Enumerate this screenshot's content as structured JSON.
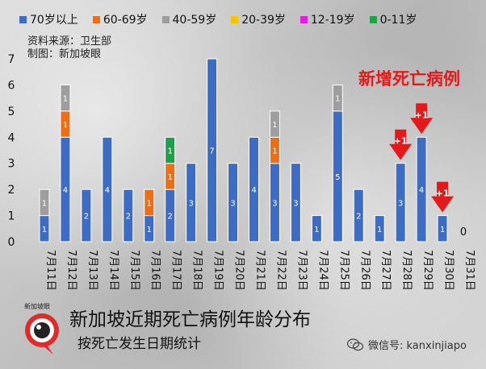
{
  "legend": [
    {
      "name": "70岁以上",
      "color": "#3c6cc4"
    },
    {
      "name": "60-69岁",
      "color": "#ee6e16"
    },
    {
      "name": "40-59岁",
      "color": "#9e9e9e"
    },
    {
      "name": "20-39岁",
      "color": "#f5c400"
    },
    {
      "name": "12-19岁",
      "color": "#e020e0"
    },
    {
      "name": "0-11岁",
      "color": "#21a04a"
    }
  ],
  "source_lines": [
    "资料来源：卫生部",
    "制图：新加坡眼"
  ],
  "corner_title": "新增死亡病例",
  "footer": {
    "title": "新加坡近期死亡病例年龄分布",
    "subtitle": "按死亡发生日期统计",
    "brand_logo_text": "新加坡眼",
    "wechat_text": "微信号: kanxinjiapo",
    "wechat_icon": "wechat-icon"
  },
  "chart_data": {
    "type": "bar",
    "stacked": true,
    "categories": [
      "7月11日",
      "7月12日",
      "7月13日",
      "7月14日",
      "7月15日",
      "7月16日",
      "7月17日",
      "7月18日",
      "7月19日",
      "7月20日",
      "7月21日",
      "7月22日",
      "7月23日",
      "7月24日",
      "7月25日",
      "7月26日",
      "7月27日",
      "7月28日",
      "7月29日",
      "7月30日",
      "7月31日"
    ],
    "series": [
      {
        "name": "70岁以上",
        "color": "#3c6cc4",
        "values": [
          1,
          4,
          2,
          4,
          2,
          1,
          2,
          3,
          7,
          3,
          4,
          3,
          3,
          1,
          5,
          2,
          1,
          3,
          4,
          1,
          0
        ]
      },
      {
        "name": "60-69岁",
        "color": "#ee6e16",
        "values": [
          0,
          1,
          0,
          0,
          0,
          1,
          1,
          0,
          0,
          0,
          0,
          1,
          0,
          0,
          0,
          0,
          0,
          0,
          0,
          0,
          0
        ]
      },
      {
        "name": "40-59岁",
        "color": "#9e9e9e",
        "values": [
          1,
          1,
          0,
          0,
          0,
          0,
          0,
          0,
          0,
          0,
          0,
          1,
          0,
          0,
          1,
          0,
          0,
          0,
          0,
          0,
          0
        ]
      },
      {
        "name": "20-39岁",
        "color": "#f5c400",
        "values": [
          0,
          0,
          0,
          0,
          0,
          0,
          0,
          0,
          0,
          0,
          0,
          0,
          0,
          0,
          0,
          0,
          0,
          0,
          0,
          0,
          0
        ]
      },
      {
        "name": "12-19岁",
        "color": "#e020e0",
        "values": [
          0,
          0,
          0,
          0,
          0,
          0,
          0,
          0,
          0,
          0,
          0,
          0,
          0,
          0,
          0,
          0,
          0,
          0,
          0,
          0,
          0
        ]
      },
      {
        "name": "0-11岁",
        "color": "#21a04a",
        "values": [
          0,
          0,
          0,
          0,
          0,
          0,
          1,
          0,
          0,
          0,
          0,
          0,
          0,
          0,
          0,
          0,
          0,
          0,
          0,
          0,
          0
        ]
      }
    ],
    "totals_zero_label": {
      "category": "7月31日",
      "label": "0"
    },
    "annotations": [
      {
        "category": "7月28日",
        "text": "+1",
        "marker": "down-arrow",
        "color": "#e41a1a"
      },
      {
        "category": "7月29日",
        "text": "+1",
        "marker": "down-arrow",
        "color": "#e41a1a"
      },
      {
        "category": "7月30日",
        "text": "+1",
        "marker": "down-arrow",
        "color": "#e41a1a"
      }
    ],
    "y_ticks": [
      0,
      1,
      2,
      3,
      4,
      5,
      6,
      7
    ],
    "ylim": [
      0,
      7
    ],
    "grid": false,
    "legend_position": "top"
  }
}
